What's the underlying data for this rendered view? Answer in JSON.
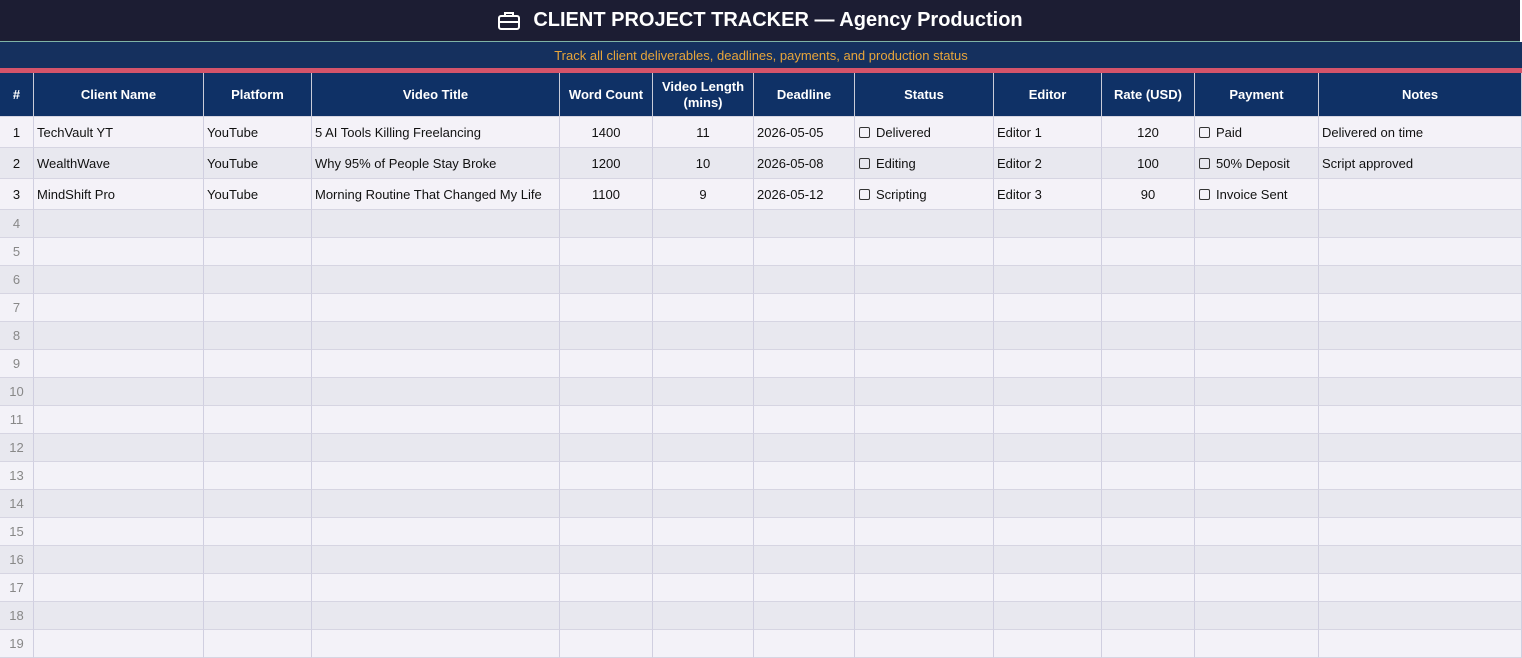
{
  "header": {
    "title": "CLIENT PROJECT TRACKER — Agency Production",
    "subtitle": "Track all client deliverables, deadlines, payments, and production status"
  },
  "table": {
    "columns": [
      "#",
      "Client Name",
      "Platform",
      "Video Title",
      "Word Count",
      "Video Length (mins)",
      "Deadline",
      "Status",
      "Editor",
      "Rate (USD)",
      "Payment",
      "Notes"
    ],
    "rows": [
      [
        1,
        "TechVault YT",
        "YouTube",
        "5 AI Tools Killing Freelancing",
        1400,
        11,
        "2026-05-05",
        "Delivered",
        "Editor 1",
        120,
        "Paid",
        "Delivered on time"
      ],
      [
        2,
        "WealthWave",
        "YouTube",
        "Why 95% of People Stay Broke",
        1200,
        10,
        "2026-05-08",
        "Editing",
        "Editor 2",
        100,
        "50% Deposit",
        "Script approved"
      ],
      [
        3,
        "MindShift Pro",
        "YouTube",
        "Morning Routine That Changed My Life",
        1100,
        9,
        "2026-05-12",
        "Scripting",
        "Editor 3",
        90,
        "Invoice Sent"
      ],
      [
        4
      ],
      [
        5
      ],
      [
        6
      ],
      [
        7
      ],
      [
        8
      ],
      [
        9
      ],
      [
        10
      ],
      [
        11
      ],
      [
        12
      ],
      [
        13
      ],
      [
        14
      ],
      [
        15
      ],
      [
        16
      ],
      [
        17
      ],
      [
        18
      ],
      [
        19
      ]
    ]
  }
}
